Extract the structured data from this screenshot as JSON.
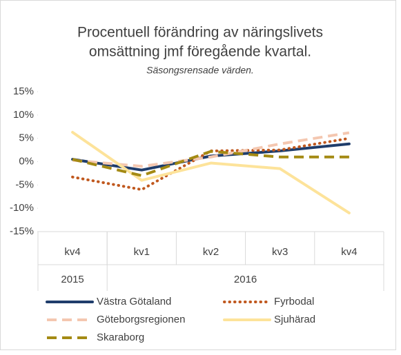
{
  "chart_data": {
    "type": "line",
    "title": [
      "Procentuell förändring av näringslivets",
      "omsättning jmf föregående kvartal."
    ],
    "subtitle": "Säsongsrensade värden.",
    "categories": [
      "kv4",
      "kv1",
      "kv2",
      "kv3",
      "kv4"
    ],
    "groups": [
      {
        "label": "2015",
        "count": 1
      },
      {
        "label": "2016",
        "count": 4
      }
    ],
    "ylim": [
      -15,
      15
    ],
    "yticks": [
      {
        "value": -15,
        "label": "-15%"
      },
      {
        "value": -10,
        "label": "-10%"
      },
      {
        "value": -5,
        "label": "-5%"
      },
      {
        "value": 0,
        "label": "0%"
      },
      {
        "value": 5,
        "label": "5%"
      },
      {
        "value": 10,
        "label": "10%"
      },
      {
        "value": 15,
        "label": "15%"
      }
    ],
    "series": [
      {
        "name": "Västra Götaland",
        "color": "#1f3d6b",
        "style": "solid",
        "values": [
          0.5,
          -1.8,
          1.2,
          2.3,
          3.8
        ]
      },
      {
        "name": "Fyrbodal",
        "color": "#c0581e",
        "style": "dotted",
        "values": [
          -3.3,
          -6.0,
          2.3,
          2.5,
          5.0
        ]
      },
      {
        "name": "Göteborgsregionen",
        "color": "#f4c7b0",
        "style": "dashed",
        "values": [
          0.3,
          -1.0,
          1.0,
          3.8,
          6.2
        ]
      },
      {
        "name": "Sjuhärad",
        "color": "#fde39a",
        "style": "solid",
        "values": [
          6.3,
          -4.0,
          -0.3,
          -1.5,
          -11.0
        ]
      },
      {
        "name": "Skaraborg",
        "color": "#a48a14",
        "style": "dashed",
        "values": [
          0.5,
          -3.0,
          2.2,
          1.0,
          1.0
        ]
      }
    ]
  }
}
